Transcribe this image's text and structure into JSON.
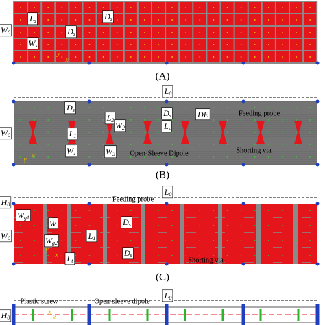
{
  "panels": [
    {
      "caption": "(A)",
      "dims": [
        {
          "main": "W",
          "sub": "0"
        },
        {
          "main": "L",
          "sub": "s"
        },
        {
          "main": "D",
          "sub": "s"
        },
        {
          "main": "D",
          "sub": "s"
        },
        {
          "main": "W",
          "sub": "s"
        }
      ],
      "notes": [],
      "axes": [
        "x",
        "y"
      ]
    },
    {
      "caption": "(B)",
      "dims": [
        {
          "main": "L",
          "sub": "0"
        },
        {
          "main": "W",
          "sub": "0"
        },
        {
          "main": "D",
          "sub": "s"
        },
        {
          "main": "L",
          "sub": "1"
        },
        {
          "main": "W",
          "sub": "1"
        },
        {
          "main": "L",
          "sub": "2"
        },
        {
          "main": "W",
          "sub": "2"
        },
        {
          "main": "W",
          "sub": "3"
        },
        {
          "main": "D",
          "sub": "s"
        },
        {
          "main": "L",
          "sub": "s"
        },
        {
          "main": "DE",
          "sub": ""
        }
      ],
      "notes": [
        "Feeding probe",
        "Open-Sleeve Dipole",
        "Shorting via"
      ],
      "axes": [
        "x",
        "y"
      ]
    },
    {
      "caption": "(C)",
      "dims": [
        {
          "main": "L",
          "sub": "0"
        },
        {
          "main": "H",
          "sub": "0"
        },
        {
          "main": "W",
          "sub": "0"
        },
        {
          "main": "W",
          "sub": "g1"
        },
        {
          "main": "W",
          "sub": ""
        },
        {
          "main": "W",
          "sub": "g2"
        },
        {
          "main": "L",
          "sub": "1"
        },
        {
          "main": "L",
          "sub": "t"
        },
        {
          "main": "D",
          "sub": "s"
        },
        {
          "main": "D",
          "sub": "s"
        }
      ],
      "notes": [
        "Feeding probe",
        "Shorting via"
      ],
      "axes": [
        "x",
        "y"
      ]
    },
    {
      "dims": [
        {
          "main": "L",
          "sub": "0"
        },
        {
          "main": "H",
          "sub": "0"
        }
      ],
      "notes": [
        "Plastic screw",
        "Open-sleeve dipole"
      ],
      "axes": [
        "z",
        "x"
      ]
    }
  ]
}
